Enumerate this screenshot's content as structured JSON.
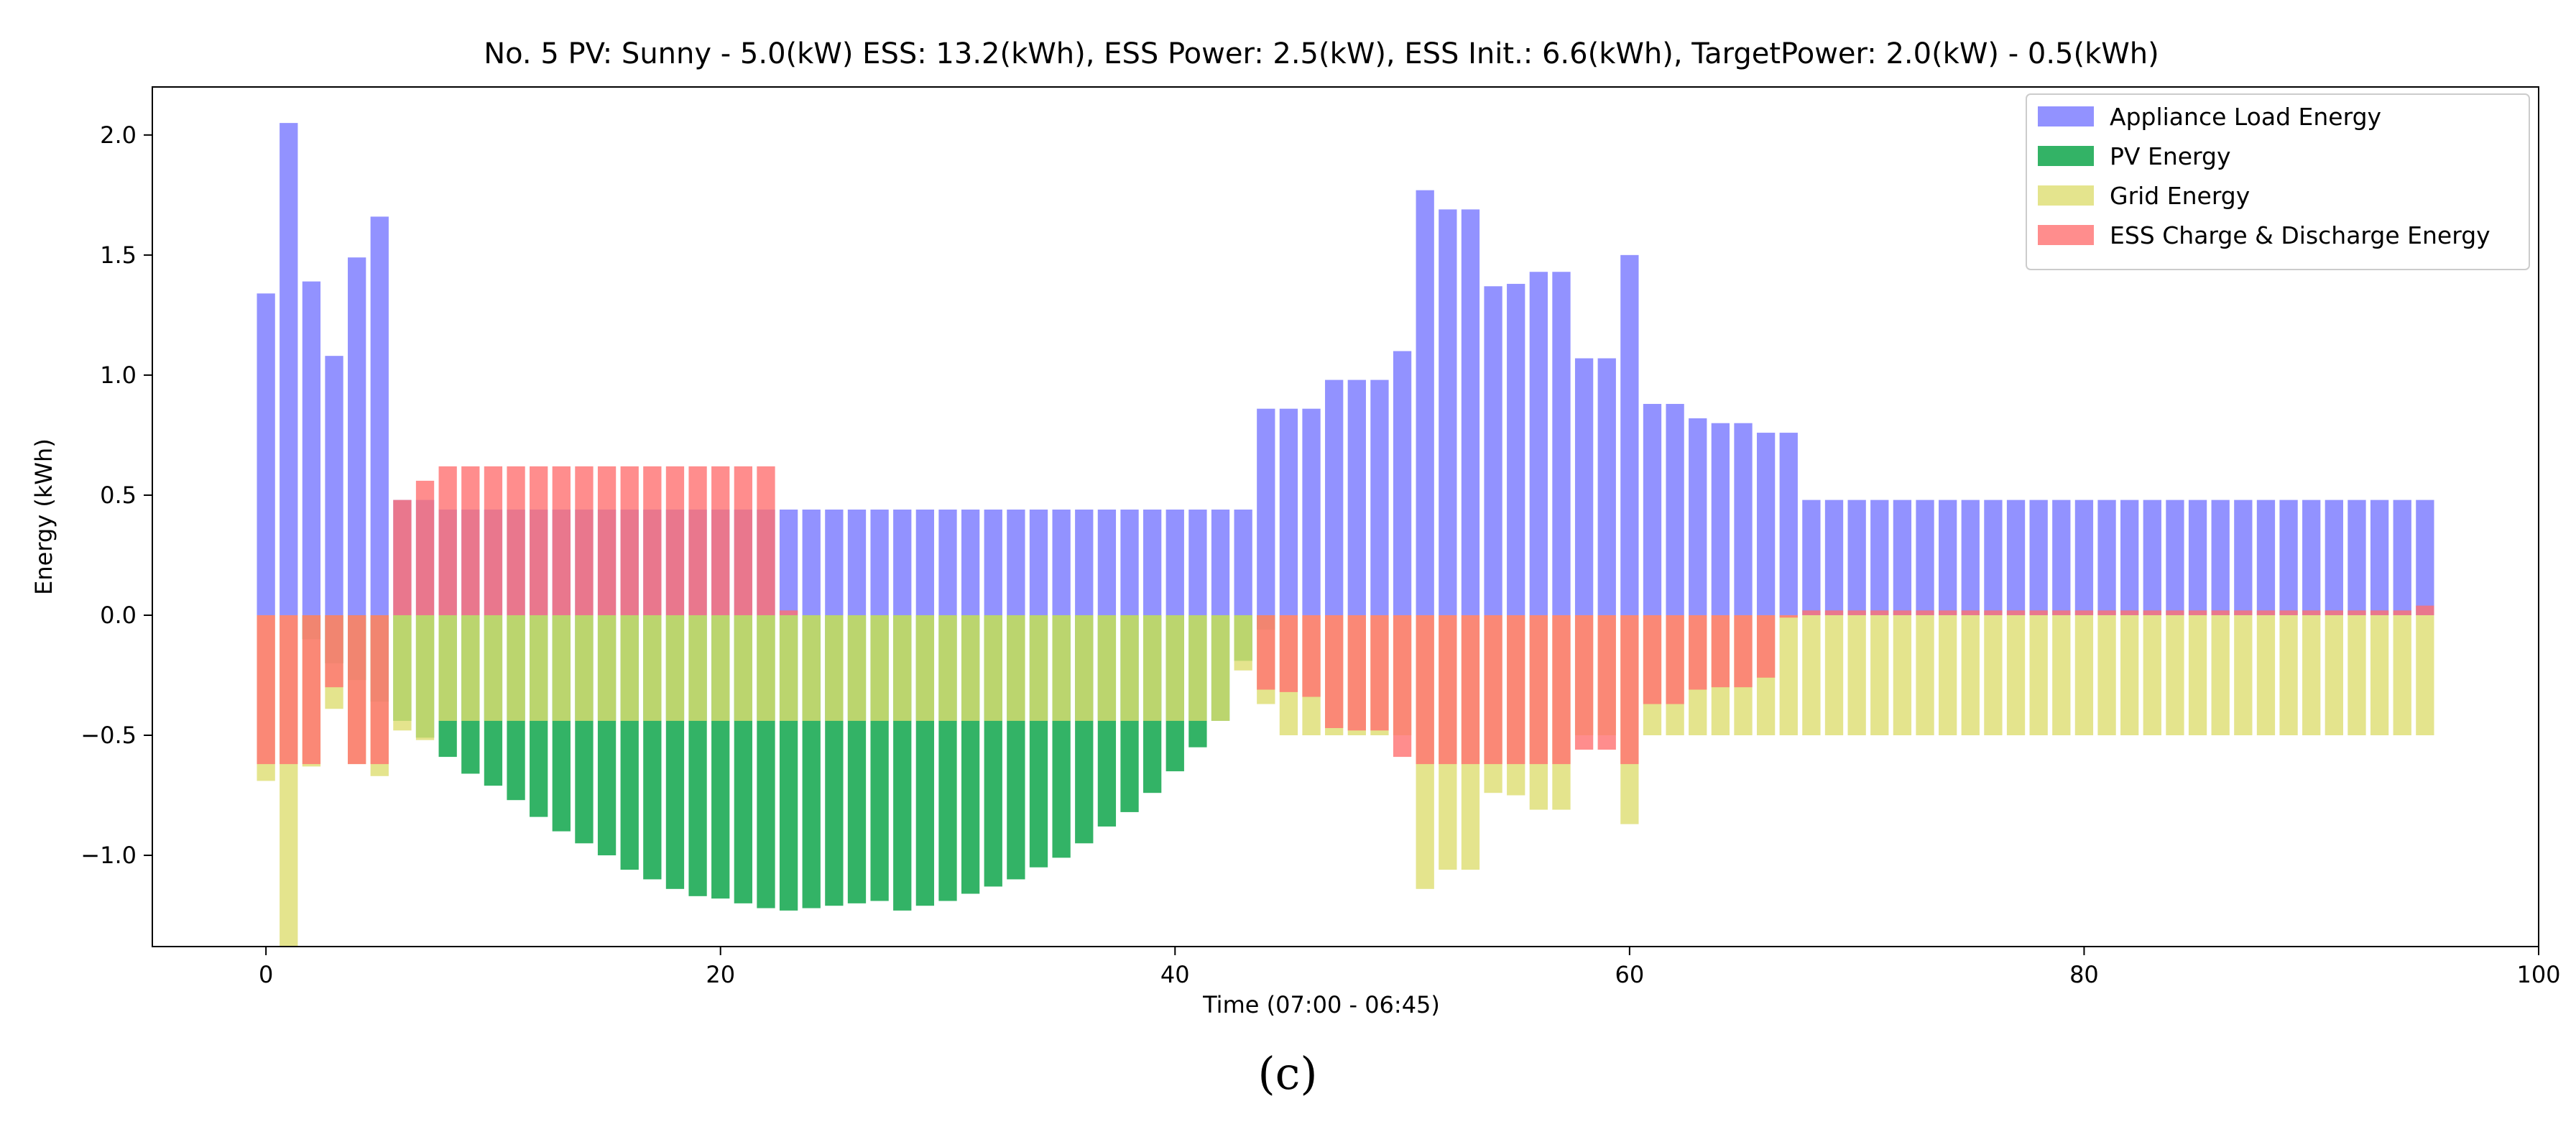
{
  "chart_data": {
    "type": "bar",
    "title": "No. 5 PV: Sunny - 5.0(kW) ESS: 13.2(kWh), ESS Power: 2.5(kW), ESS Init.: 6.6(kWh), TargetPower: 2.0(kW) - 0.5(kWh)",
    "xlabel": "Time (07:00 - 06:45)",
    "ylabel": "Energy (kWh)",
    "xlim": [
      -5,
      100
    ],
    "ylim": [
      -1.38,
      2.2
    ],
    "xticks": [
      0,
      20,
      40,
      60,
      80,
      100
    ],
    "yticks": [
      -1.0,
      -0.5,
      0.0,
      0.5,
      1.0,
      1.5,
      2.0
    ],
    "xtick_labels": [
      "0",
      "20",
      "40",
      "60",
      "80",
      "100"
    ],
    "ytick_labels": [
      "−1.0",
      "−0.5",
      "0.0",
      "0.5",
      "1.0",
      "1.5",
      "2.0"
    ],
    "legend_position": "upper right",
    "caption": "(c)",
    "series": [
      {
        "name": "Appliance Load Energy",
        "color": "#7777ff",
        "values": [
          1.34,
          2.05,
          1.39,
          1.08,
          1.49,
          1.66,
          0.48,
          0.48,
          0.44,
          0.44,
          0.44,
          0.44,
          0.44,
          0.44,
          0.44,
          0.44,
          0.44,
          0.44,
          0.44,
          0.44,
          0.44,
          0.44,
          0.44,
          0.44,
          0.44,
          0.44,
          0.44,
          0.44,
          0.44,
          0.44,
          0.44,
          0.44,
          0.44,
          0.44,
          0.44,
          0.44,
          0.44,
          0.44,
          0.44,
          0.44,
          0.44,
          0.44,
          0.44,
          0.44,
          0.86,
          0.86,
          0.86,
          0.98,
          0.98,
          0.98,
          1.1,
          1.77,
          1.69,
          1.69,
          1.37,
          1.38,
          1.43,
          1.43,
          1.07,
          1.07,
          1.5,
          0.88,
          0.88,
          0.82,
          0.8,
          0.8,
          0.76,
          0.76,
          0.48,
          0.48,
          0.48,
          0.48,
          0.48,
          0.48,
          0.48,
          0.48,
          0.48,
          0.48,
          0.48,
          0.48,
          0.48,
          0.48,
          0.48,
          0.48,
          0.48,
          0.48,
          0.48,
          0.48,
          0.48,
          0.48,
          0.48,
          0.48,
          0.48,
          0.48,
          0.48,
          0.48
        ]
      },
      {
        "name": "PV Energy",
        "color": "#00a040",
        "values": [
          0,
          0,
          -0.1,
          -0.2,
          -0.27,
          -0.36,
          -0.44,
          -0.51,
          -0.59,
          -0.66,
          -0.71,
          -0.77,
          -0.84,
          -0.9,
          -0.95,
          -1.0,
          -1.06,
          -1.1,
          -1.14,
          -1.17,
          -1.18,
          -1.2,
          -1.22,
          -1.23,
          -1.22,
          -1.21,
          -1.2,
          -1.19,
          -1.23,
          -1.21,
          -1.19,
          -1.16,
          -1.13,
          -1.1,
          -1.05,
          -1.01,
          -0.95,
          -0.88,
          -0.82,
          -0.74,
          -0.65,
          -0.55,
          -0.44,
          -0.19,
          -0.06,
          0,
          0,
          0,
          0,
          0,
          0,
          0,
          0,
          0,
          0,
          0,
          0,
          0,
          0,
          0,
          0,
          0,
          0,
          0,
          0,
          0,
          0,
          0,
          0,
          0,
          0,
          0,
          0,
          0,
          0,
          0,
          0,
          0,
          0,
          0,
          0,
          0,
          0,
          0,
          0,
          0,
          0,
          0,
          0,
          0,
          0,
          0,
          0,
          0,
          0,
          0,
          0,
          0
        ]
      },
      {
        "name": "Grid Energy",
        "color": "#dddd70",
        "values": [
          -0.69,
          -1.38,
          -0.63,
          -0.39,
          -0.62,
          -0.67,
          -0.48,
          -0.52,
          -0.44,
          -0.44,
          -0.44,
          -0.44,
          -0.44,
          -0.44,
          -0.44,
          -0.44,
          -0.44,
          -0.44,
          -0.44,
          -0.44,
          -0.44,
          -0.44,
          -0.44,
          -0.44,
          -0.44,
          -0.44,
          -0.44,
          -0.44,
          -0.44,
          -0.44,
          -0.44,
          -0.44,
          -0.44,
          -0.44,
          -0.44,
          -0.44,
          -0.44,
          -0.44,
          -0.44,
          -0.44,
          -0.44,
          -0.44,
          -0.44,
          -0.23,
          -0.37,
          -0.5,
          -0.5,
          -0.5,
          -0.5,
          -0.5,
          -0.5,
          -1.14,
          -1.06,
          -1.06,
          -0.74,
          -0.75,
          -0.81,
          -0.81,
          -0.5,
          -0.5,
          -0.87,
          -0.5,
          -0.5,
          -0.5,
          -0.5,
          -0.5,
          -0.5,
          -0.5,
          -0.5,
          -0.5,
          -0.5,
          -0.5,
          -0.5,
          -0.5,
          -0.5,
          -0.5,
          -0.5,
          -0.5,
          -0.5,
          -0.5,
          -0.5,
          -0.5,
          -0.5,
          -0.5,
          -0.5,
          -0.5,
          -0.5,
          -0.5,
          -0.5,
          -0.5,
          -0.5,
          -0.5,
          -0.5,
          -0.5,
          -0.5,
          -0.5
        ]
      },
      {
        "name": "ESS Charge & Discharge Energy",
        "color": "#ff7070",
        "values": [
          -0.62,
          -0.62,
          -0.62,
          -0.3,
          -0.62,
          -0.62,
          0.48,
          0.56,
          0.62,
          0.62,
          0.62,
          0.62,
          0.62,
          0.62,
          0.62,
          0.62,
          0.62,
          0.62,
          0.62,
          0.62,
          0.62,
          0.62,
          0.62,
          0.02,
          0,
          0,
          0,
          0,
          0,
          0,
          0,
          0,
          0,
          0,
          0,
          0,
          0,
          0,
          0,
          0,
          0,
          0,
          0,
          0,
          -0.31,
          -0.32,
          -0.34,
          -0.47,
          -0.48,
          -0.48,
          -0.59,
          -0.62,
          -0.62,
          -0.62,
          -0.62,
          -0.62,
          -0.62,
          -0.62,
          -0.56,
          -0.56,
          -0.62,
          -0.37,
          -0.37,
          -0.31,
          -0.3,
          -0.3,
          -0.26,
          -0.01,
          0.02,
          0.02,
          0.02,
          0.02,
          0.02,
          0.02,
          0.02,
          0.02,
          0.02,
          0.02,
          0.02,
          0.02,
          0.02,
          0.02,
          0.02,
          0.02,
          0.02,
          0.02,
          0.02,
          0.02,
          0.02,
          0.02,
          0.02,
          0.02,
          0.02,
          0.02,
          0.02,
          0.04
        ]
      }
    ]
  }
}
